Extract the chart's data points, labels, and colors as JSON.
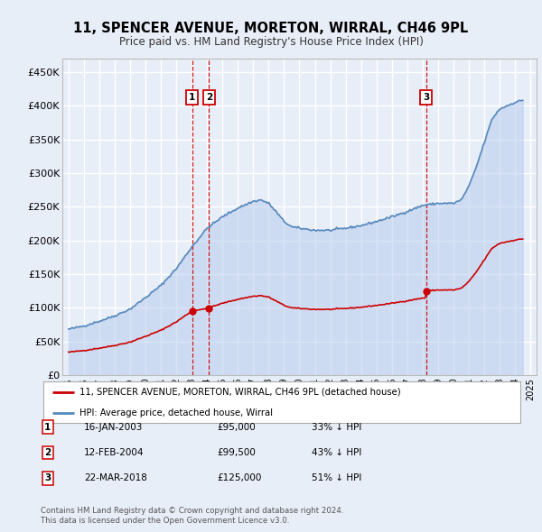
{
  "title": "11, SPENCER AVENUE, MORETON, WIRRAL, CH46 9PL",
  "subtitle": "Price paid vs. HM Land Registry's House Price Index (HPI)",
  "ylim": [
    0,
    470000
  ],
  "yticks": [
    0,
    50000,
    100000,
    150000,
    200000,
    250000,
    300000,
    350000,
    400000,
    450000
  ],
  "ytick_labels": [
    "£0",
    "£50K",
    "£100K",
    "£150K",
    "£200K",
    "£250K",
    "£300K",
    "£350K",
    "£400K",
    "£450K"
  ],
  "xlim_start": 1994.6,
  "xlim_end": 2025.4,
  "background_color": "#e8eef8",
  "plot_bg_color": "#e8eef8",
  "grid_color": "#ffffff",
  "red_line_color": "#cc0000",
  "blue_line_color": "#5588bb",
  "blue_fill_color": "#b8ccee",
  "sale_marker_color": "#cc0000",
  "dashed_line_color": "#cc0000",
  "legend_label_red": "11, SPENCER AVENUE, MORETON, WIRRAL, CH46 9PL (detached house)",
  "legend_label_blue": "HPI: Average price, detached house, Wirral",
  "sales": [
    {
      "num": 1,
      "date": "16-JAN-2003",
      "price": "£95,000",
      "pct": "33% ↓ HPI",
      "year": 2003.04
    },
    {
      "num": 2,
      "date": "12-FEB-2004",
      "price": "£99,500",
      "pct": "43% ↓ HPI",
      "year": 2004.12
    },
    {
      "num": 3,
      "date": "22-MAR-2018",
      "price": "£125,000",
      "pct": "51% ↓ HPI",
      "year": 2018.22
    }
  ],
  "sale_values": [
    95000,
    99500,
    125000
  ],
  "footnote1": "Contains HM Land Registry data © Crown copyright and database right 2024.",
  "footnote2": "This data is licensed under the Open Government Licence v3.0."
}
